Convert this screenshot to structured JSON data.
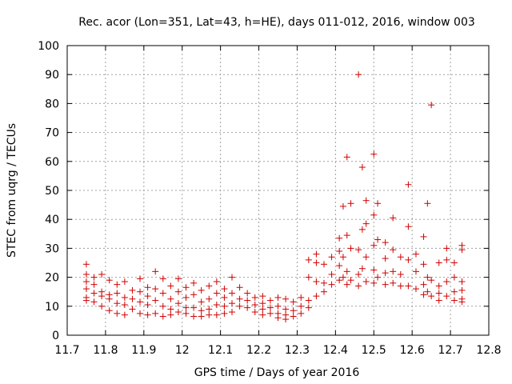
{
  "chart_data": {
    "type": "scatter",
    "title": "Rec. acor (Lon=351, Lat=43, h=HE), days 011-012, 2016, window 003",
    "xlabel": "GPS time / Days of year 2016",
    "ylabel": "STEC from uqrg / TECUs",
    "xlim": [
      11.7,
      12.8
    ],
    "ylim": [
      0,
      100
    ],
    "xticks": [
      "11.7",
      "11.8",
      "11.9",
      "12",
      "12.1",
      "12.2",
      "12.3",
      "12.4",
      "12.5",
      "12.6",
      "12.7",
      "12.8"
    ],
    "yticks": [
      "0",
      "10",
      "20",
      "30",
      "40",
      "50",
      "60",
      "70",
      "80",
      "90",
      "100"
    ],
    "grid": true,
    "marker": "+",
    "color": "#d00000",
    "series": [
      {
        "name": "",
        "points": [
          [
            11.75,
            24.5
          ],
          [
            11.75,
            21.0
          ],
          [
            11.75,
            18.5
          ],
          [
            11.75,
            16.0
          ],
          [
            11.75,
            13.0
          ],
          [
            11.75,
            12.0
          ],
          [
            11.77,
            20.0
          ],
          [
            11.77,
            17.5
          ],
          [
            11.77,
            14.5
          ],
          [
            11.77,
            11.5
          ],
          [
            11.79,
            21.0
          ],
          [
            11.79,
            15.0
          ],
          [
            11.79,
            13.5
          ],
          [
            11.79,
            10.0
          ],
          [
            11.81,
            19.0
          ],
          [
            11.81,
            14.0
          ],
          [
            11.81,
            12.5
          ],
          [
            11.81,
            8.5
          ],
          [
            11.83,
            17.5
          ],
          [
            11.83,
            14.5
          ],
          [
            11.83,
            11.0
          ],
          [
            11.83,
            7.5
          ],
          [
            11.85,
            18.5
          ],
          [
            11.85,
            13.0
          ],
          [
            11.85,
            10.5
          ],
          [
            11.85,
            7.0
          ],
          [
            11.87,
            15.5
          ],
          [
            11.87,
            12.5
          ],
          [
            11.87,
            9.0
          ],
          [
            11.89,
            19.5
          ],
          [
            11.89,
            15.0
          ],
          [
            11.89,
            11.5
          ],
          [
            11.89,
            7.5
          ],
          [
            11.91,
            16.5
          ],
          [
            11.91,
            13.5
          ],
          [
            11.91,
            10.5
          ],
          [
            11.91,
            7.0
          ],
          [
            11.93,
            22.0
          ],
          [
            11.93,
            16.0
          ],
          [
            11.93,
            12.0
          ],
          [
            11.93,
            7.5
          ],
          [
            11.95,
            19.5
          ],
          [
            11.95,
            14.5
          ],
          [
            11.95,
            10.0
          ],
          [
            11.95,
            6.5
          ],
          [
            11.97,
            17.0
          ],
          [
            11.97,
            12.5
          ],
          [
            11.97,
            9.0
          ],
          [
            11.97,
            7.0
          ],
          [
            11.99,
            19.5
          ],
          [
            11.99,
            15.0
          ],
          [
            11.99,
            11.0
          ],
          [
            11.99,
            8.0
          ],
          [
            12.01,
            16.5
          ],
          [
            12.01,
            13.0
          ],
          [
            12.01,
            9.5
          ],
          [
            12.01,
            7.5
          ],
          [
            12.03,
            18.0
          ],
          [
            12.03,
            14.0
          ],
          [
            12.03,
            9.5
          ],
          [
            12.03,
            6.5
          ],
          [
            12.05,
            15.5
          ],
          [
            12.05,
            11.5
          ],
          [
            12.05,
            8.5
          ],
          [
            12.05,
            6.5
          ],
          [
            12.07,
            17.0
          ],
          [
            12.07,
            12.5
          ],
          [
            12.07,
            9.0
          ],
          [
            12.07,
            7.0
          ],
          [
            12.09,
            18.5
          ],
          [
            12.09,
            14.5
          ],
          [
            12.09,
            10.5
          ],
          [
            12.09,
            7.0
          ],
          [
            12.11,
            16.0
          ],
          [
            12.11,
            13.0
          ],
          [
            12.11,
            10.0
          ],
          [
            12.11,
            7.5
          ],
          [
            12.13,
            20.0
          ],
          [
            12.13,
            14.5
          ],
          [
            12.13,
            11.0
          ],
          [
            12.13,
            8.0
          ],
          [
            12.15,
            16.5
          ],
          [
            12.15,
            12.5
          ],
          [
            12.15,
            10.0
          ],
          [
            12.17,
            14.5
          ],
          [
            12.17,
            12.0
          ],
          [
            12.17,
            9.5
          ],
          [
            12.19,
            13.0
          ],
          [
            12.19,
            10.5
          ],
          [
            12.19,
            8.0
          ],
          [
            12.21,
            13.5
          ],
          [
            12.21,
            11.0
          ],
          [
            12.21,
            9.0
          ],
          [
            12.21,
            7.0
          ],
          [
            12.23,
            12.0
          ],
          [
            12.23,
            9.5
          ],
          [
            12.23,
            7.5
          ],
          [
            12.25,
            13.0
          ],
          [
            12.25,
            10.0
          ],
          [
            12.25,
            7.5
          ],
          [
            12.25,
            6.0
          ],
          [
            12.27,
            12.5
          ],
          [
            12.27,
            9.0
          ],
          [
            12.27,
            7.0
          ],
          [
            12.27,
            5.5
          ],
          [
            12.29,
            11.5
          ],
          [
            12.29,
            8.5
          ],
          [
            12.29,
            6.5
          ],
          [
            12.31,
            13.0
          ],
          [
            12.31,
            10.0
          ],
          [
            12.31,
            7.5
          ],
          [
            12.33,
            26.0
          ],
          [
            12.33,
            20.0
          ],
          [
            12.33,
            12.0
          ],
          [
            12.33,
            9.5
          ],
          [
            12.35,
            28.0
          ],
          [
            12.35,
            25.0
          ],
          [
            12.35,
            18.5
          ],
          [
            12.35,
            13.5
          ],
          [
            12.37,
            24.5
          ],
          [
            12.37,
            18.0
          ],
          [
            12.37,
            15.0
          ],
          [
            12.39,
            27.0
          ],
          [
            12.39,
            21.0
          ],
          [
            12.39,
            17.5
          ],
          [
            12.41,
            33.5
          ],
          [
            12.41,
            29.0
          ],
          [
            12.41,
            24.0
          ],
          [
            12.41,
            19.0
          ],
          [
            12.42,
            44.5
          ],
          [
            12.42,
            27.0
          ],
          [
            12.42,
            20.0
          ],
          [
            12.43,
            61.5
          ],
          [
            12.43,
            34.5
          ],
          [
            12.43,
            22.0
          ],
          [
            12.43,
            17.5
          ],
          [
            12.44,
            45.5
          ],
          [
            12.44,
            30.0
          ],
          [
            12.44,
            19.0
          ],
          [
            12.46,
            90.0
          ],
          [
            12.46,
            29.5
          ],
          [
            12.46,
            21.0
          ],
          [
            12.46,
            17.0
          ],
          [
            12.47,
            58.0
          ],
          [
            12.47,
            36.5
          ],
          [
            12.47,
            23.0
          ],
          [
            12.48,
            46.5
          ],
          [
            12.48,
            38.5
          ],
          [
            12.48,
            27.0
          ],
          [
            12.48,
            18.5
          ],
          [
            12.5,
            62.5
          ],
          [
            12.5,
            41.5
          ],
          [
            12.5,
            31.0
          ],
          [
            12.5,
            22.5
          ],
          [
            12.5,
            18.0
          ],
          [
            12.51,
            45.5
          ],
          [
            12.51,
            33.0
          ],
          [
            12.51,
            20.0
          ],
          [
            12.53,
            32.0
          ],
          [
            12.53,
            26.5
          ],
          [
            12.53,
            21.5
          ],
          [
            12.53,
            17.5
          ],
          [
            12.55,
            40.5
          ],
          [
            12.55,
            29.5
          ],
          [
            12.55,
            22.0
          ],
          [
            12.55,
            18.0
          ],
          [
            12.57,
            27.0
          ],
          [
            12.57,
            21.0
          ],
          [
            12.57,
            17.0
          ],
          [
            12.59,
            52.0
          ],
          [
            12.59,
            37.5
          ],
          [
            12.59,
            26.0
          ],
          [
            12.59,
            17.0
          ],
          [
            12.61,
            28.0
          ],
          [
            12.61,
            22.0
          ],
          [
            12.61,
            16.0
          ],
          [
            12.63,
            34.0
          ],
          [
            12.63,
            24.5
          ],
          [
            12.63,
            17.5
          ],
          [
            12.63,
            14.0
          ],
          [
            12.64,
            45.5
          ],
          [
            12.64,
            20.0
          ],
          [
            12.64,
            15.0
          ],
          [
            12.65,
            79.5
          ],
          [
            12.65,
            19.0
          ],
          [
            12.65,
            13.5
          ],
          [
            12.67,
            25.0
          ],
          [
            12.67,
            17.0
          ],
          [
            12.67,
            14.5
          ],
          [
            12.67,
            12.0
          ],
          [
            12.69,
            30.0
          ],
          [
            12.69,
            26.0
          ],
          [
            12.69,
            18.5
          ],
          [
            12.69,
            13.5
          ],
          [
            12.71,
            25.0
          ],
          [
            12.71,
            20.0
          ],
          [
            12.71,
            15.0
          ],
          [
            12.71,
            12.0
          ],
          [
            12.73,
            31.0
          ],
          [
            12.73,
            29.5
          ],
          [
            12.73,
            18.5
          ],
          [
            12.73,
            15.5
          ],
          [
            12.73,
            12.5
          ],
          [
            12.73,
            11.5
          ]
        ]
      }
    ]
  }
}
